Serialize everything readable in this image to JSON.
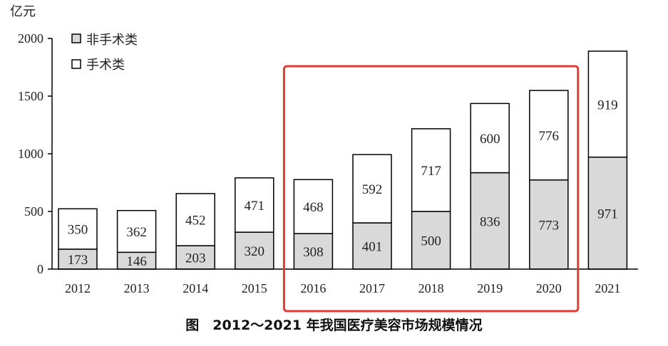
{
  "chart_data": {
    "type": "bar",
    "stacked": true,
    "categories": [
      "2012",
      "2013",
      "2014",
      "2015",
      "2016",
      "2017",
      "2018",
      "2019",
      "2020",
      "2021"
    ],
    "series": [
      {
        "name": "非手术类",
        "values": [
          173,
          146,
          203,
          320,
          308,
          401,
          500,
          836,
          773,
          971
        ],
        "color": "#d9d9d9"
      },
      {
        "name": "手术类",
        "values": [
          350,
          362,
          452,
          471,
          468,
          592,
          717,
          600,
          776,
          919
        ],
        "color": "#ffffff"
      }
    ],
    "ylabel": "亿元",
    "ylim": [
      0,
      2000
    ],
    "yticks": [
      "0",
      "500",
      "1000",
      "1500",
      "2000"
    ],
    "title": "图　2012～2021 年我国医疗美容市场规模情况",
    "legend_position": "top-left",
    "grid": false,
    "highlight": {
      "categories": [
        "2016",
        "2017",
        "2018",
        "2019",
        "2020"
      ],
      "color": "#e53935"
    }
  }
}
